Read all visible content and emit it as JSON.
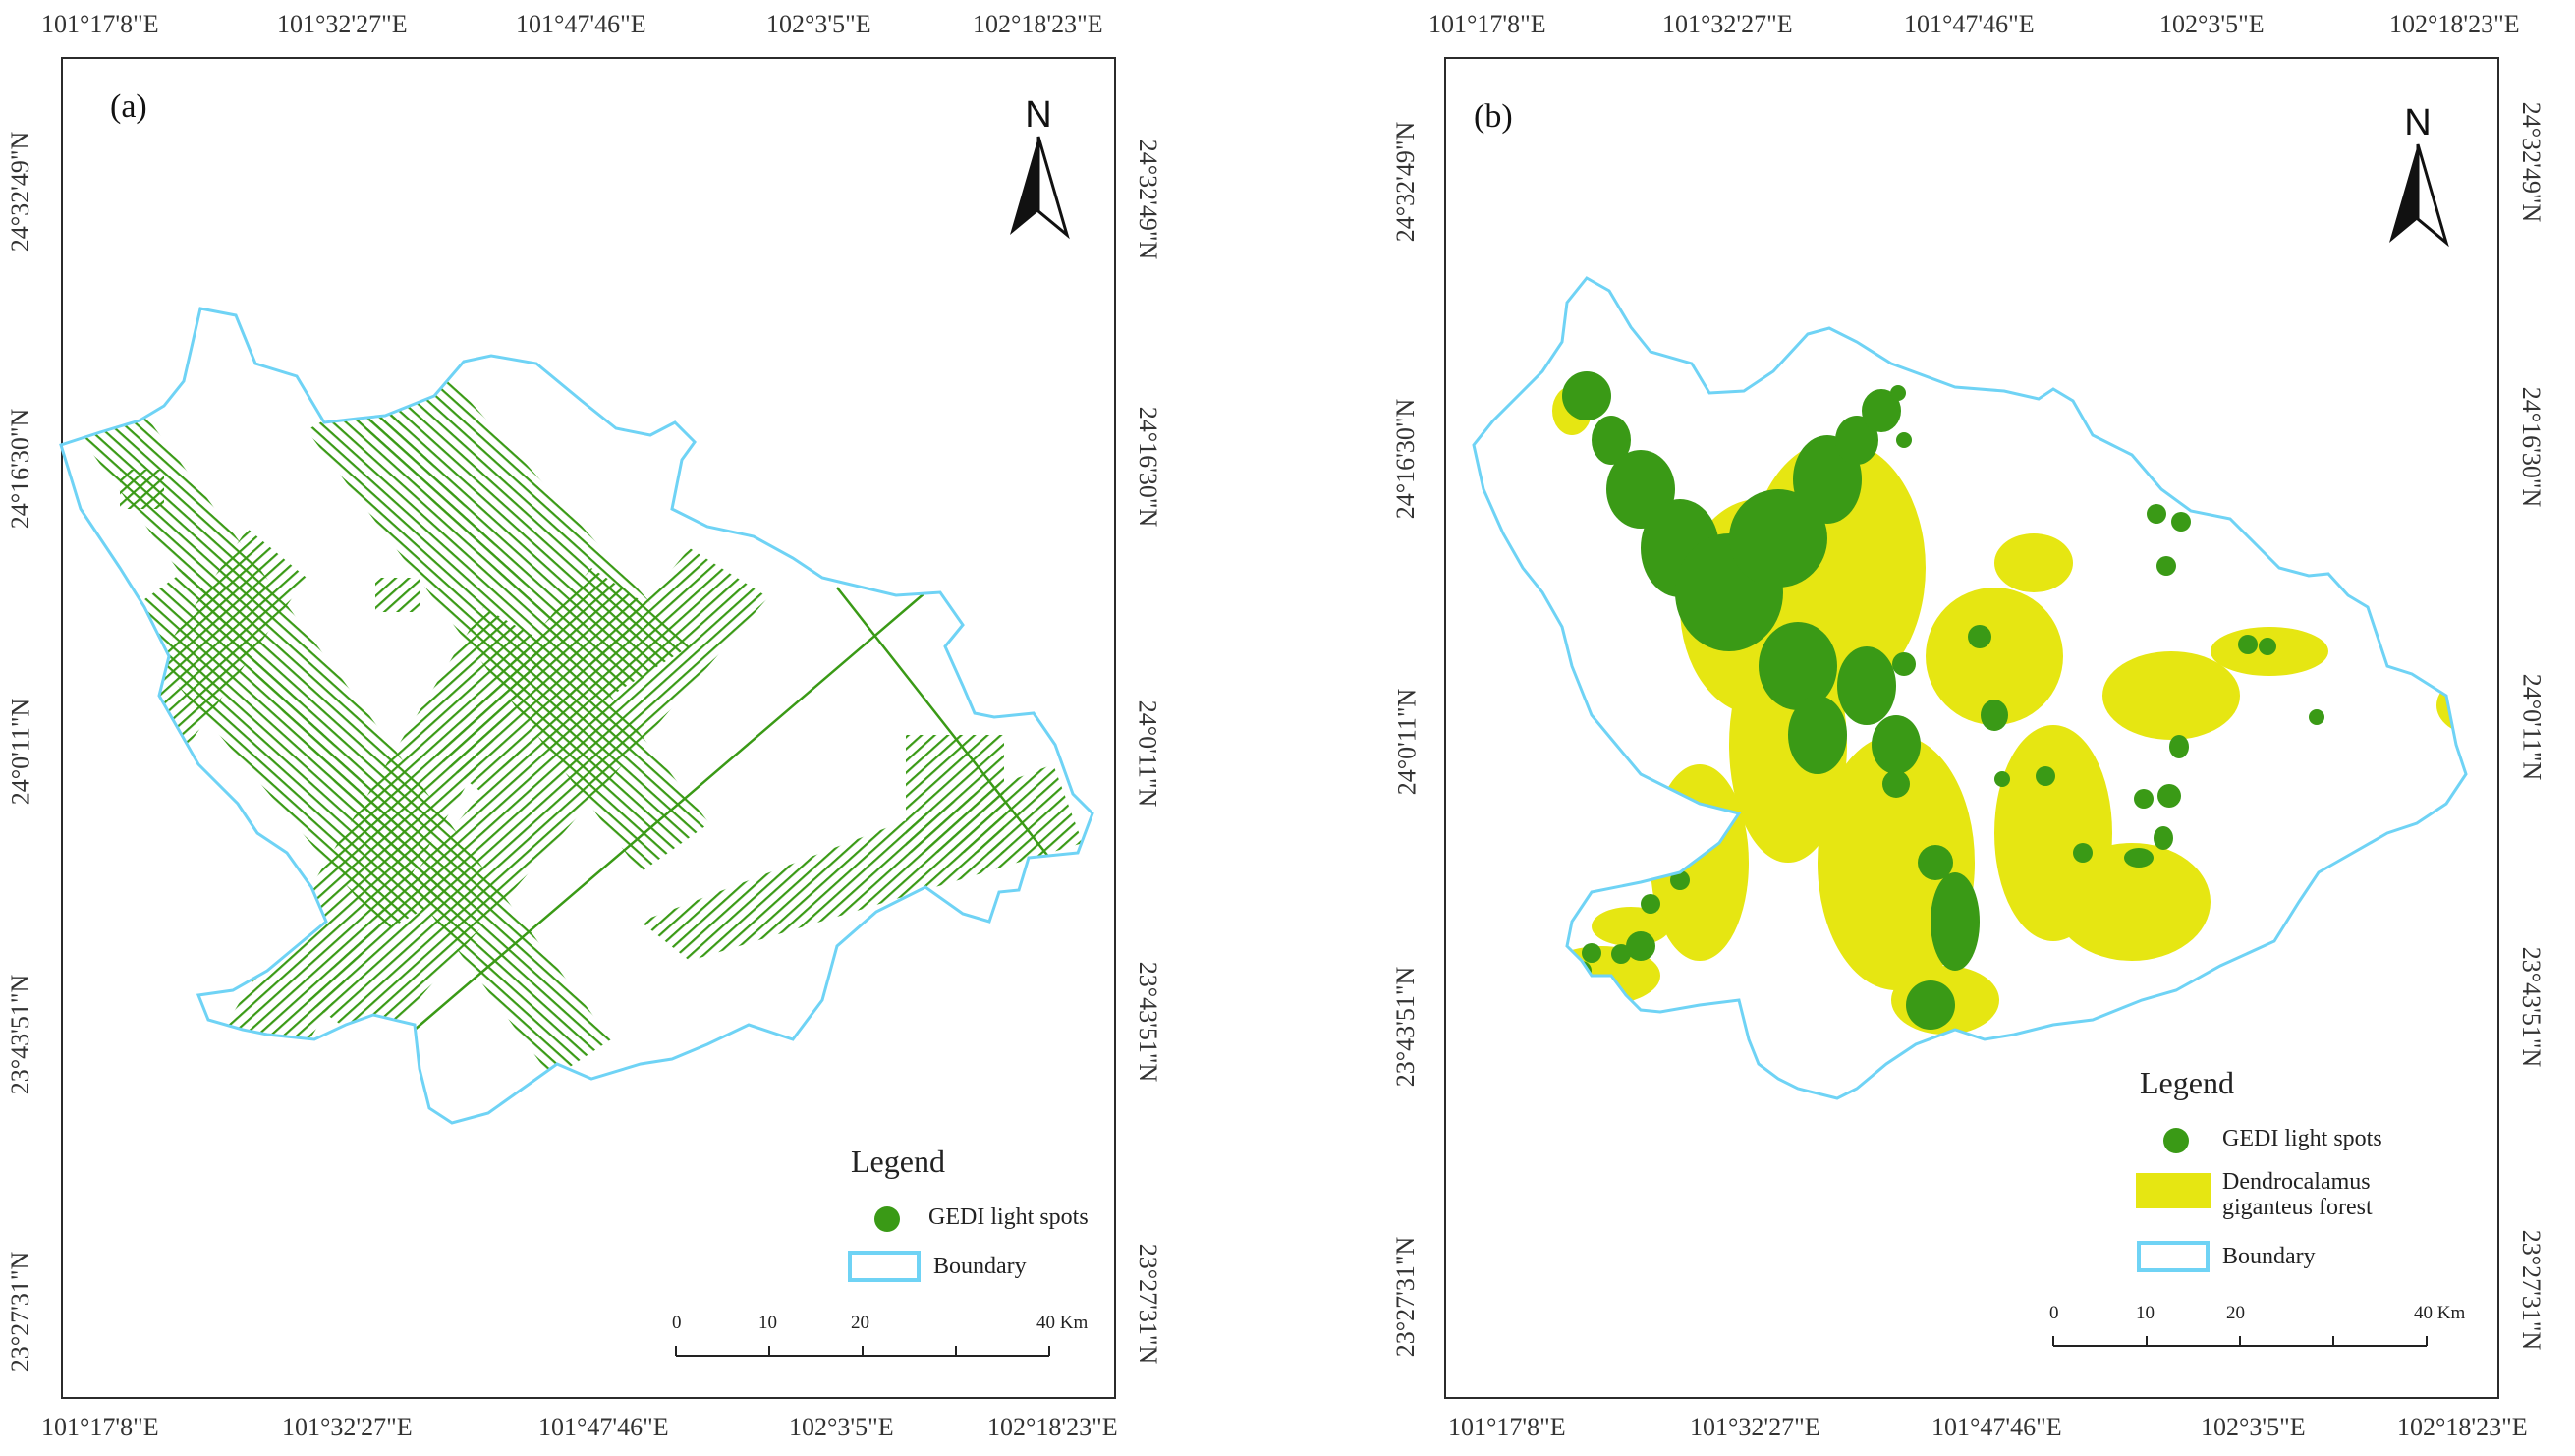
{
  "panel_a": {
    "label": "(a)",
    "north_label": "N",
    "top_ticks": [
      "101°17'8\"E",
      "101°32'27\"E",
      "101°47'46\"E",
      "102°3'5\"E",
      "102°18'23\"E"
    ],
    "bottom_ticks": [
      "101°17'8\"E",
      "101°32'27\"E",
      "101°47'46\"E",
      "102°3'5\"E",
      "102°18'23\"E"
    ],
    "left_ticks": [
      "24°32'49\"N",
      "24°16'30\"N",
      "24°0'11\"N",
      "23°43'51\"N",
      "23°27'31\"N"
    ],
    "right_ticks": [
      "24°32'49\"N",
      "24°16'30\"N",
      "24°0'11\"N",
      "23°43'51\"N",
      "23°27'31\"N"
    ],
    "legend": {
      "title": "Legend",
      "gedi": "GEDI light spots",
      "boundary": "Boundary"
    },
    "scale": {
      "labels": [
        "0",
        "10",
        "20",
        "40 Km"
      ]
    }
  },
  "panel_b": {
    "label": "(b)",
    "north_label": "N",
    "top_ticks": [
      "101°17'8\"E",
      "101°32'27\"E",
      "101°47'46\"E",
      "102°3'5\"E",
      "102°18'23\"E"
    ],
    "bottom_ticks": [
      "101°17'8\"E",
      "101°32'27\"E",
      "101°47'46\"E",
      "102°3'5\"E",
      "102°18'23\"E"
    ],
    "left_ticks": [
      "24°32'49\"N",
      "24°16'30\"N",
      "24°0'11\"N",
      "23°43'51\"N",
      "23°27'31\"N"
    ],
    "right_ticks": [
      "24°32'49\"N",
      "24°16'30\"N",
      "24°0'11\"N",
      "23°43'51\"N",
      "23°27'31\"N"
    ],
    "legend": {
      "title": "Legend",
      "gedi": "GEDI light spots",
      "forest": "Dendrocalamus giganteus forest",
      "boundary": "Boundary"
    },
    "scale": {
      "labels": [
        "0",
        "10",
        "20",
        "40 Km"
      ]
    }
  },
  "colors": {
    "gedi": "#3a9a16",
    "forest": "#e6e612",
    "boundary": "#6fd3f5",
    "frame": "#2b2b2b"
  }
}
